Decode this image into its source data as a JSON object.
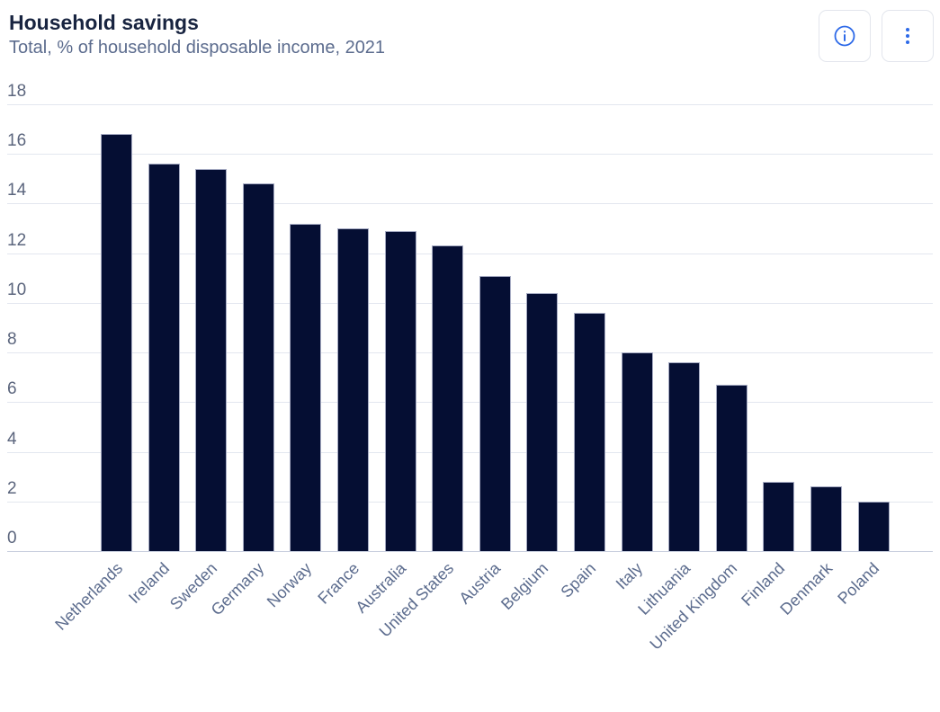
{
  "header": {
    "buttons": [
      {
        "name": "info-button",
        "icon": "info-circle-icon"
      },
      {
        "name": "more-options-button",
        "icon": "kebab-vertical-icon"
      }
    ]
  },
  "chart_data": {
    "type": "bar",
    "title": "Household savings",
    "subtitle": "Total, % of household disposable income, 2021",
    "unit": "% of household disposable income",
    "year": "2021",
    "categories": [
      "Netherlands",
      "Ireland",
      "Sweden",
      "Germany",
      "Norway",
      "France",
      "Australia",
      "United States",
      "Austria",
      "Belgium",
      "Spain",
      "Italy",
      "Lithuania",
      "United Kingdom",
      "Finland",
      "Denmark",
      "Poland"
    ],
    "values": [
      16.8,
      15.6,
      15.4,
      14.8,
      13.2,
      13.0,
      12.9,
      12.3,
      11.1,
      10.4,
      9.6,
      8.0,
      7.6,
      6.7,
      2.8,
      2.6,
      2.0
    ],
    "ylim": [
      0,
      18
    ],
    "yticks": [
      0,
      2,
      4,
      6,
      8,
      10,
      12,
      14,
      16,
      18
    ],
    "grid": true,
    "legend_position": "none",
    "bar_color": "#050e33",
    "gridline_color": "#e3e7ef",
    "accent_blue": "#2e6ae8"
  }
}
